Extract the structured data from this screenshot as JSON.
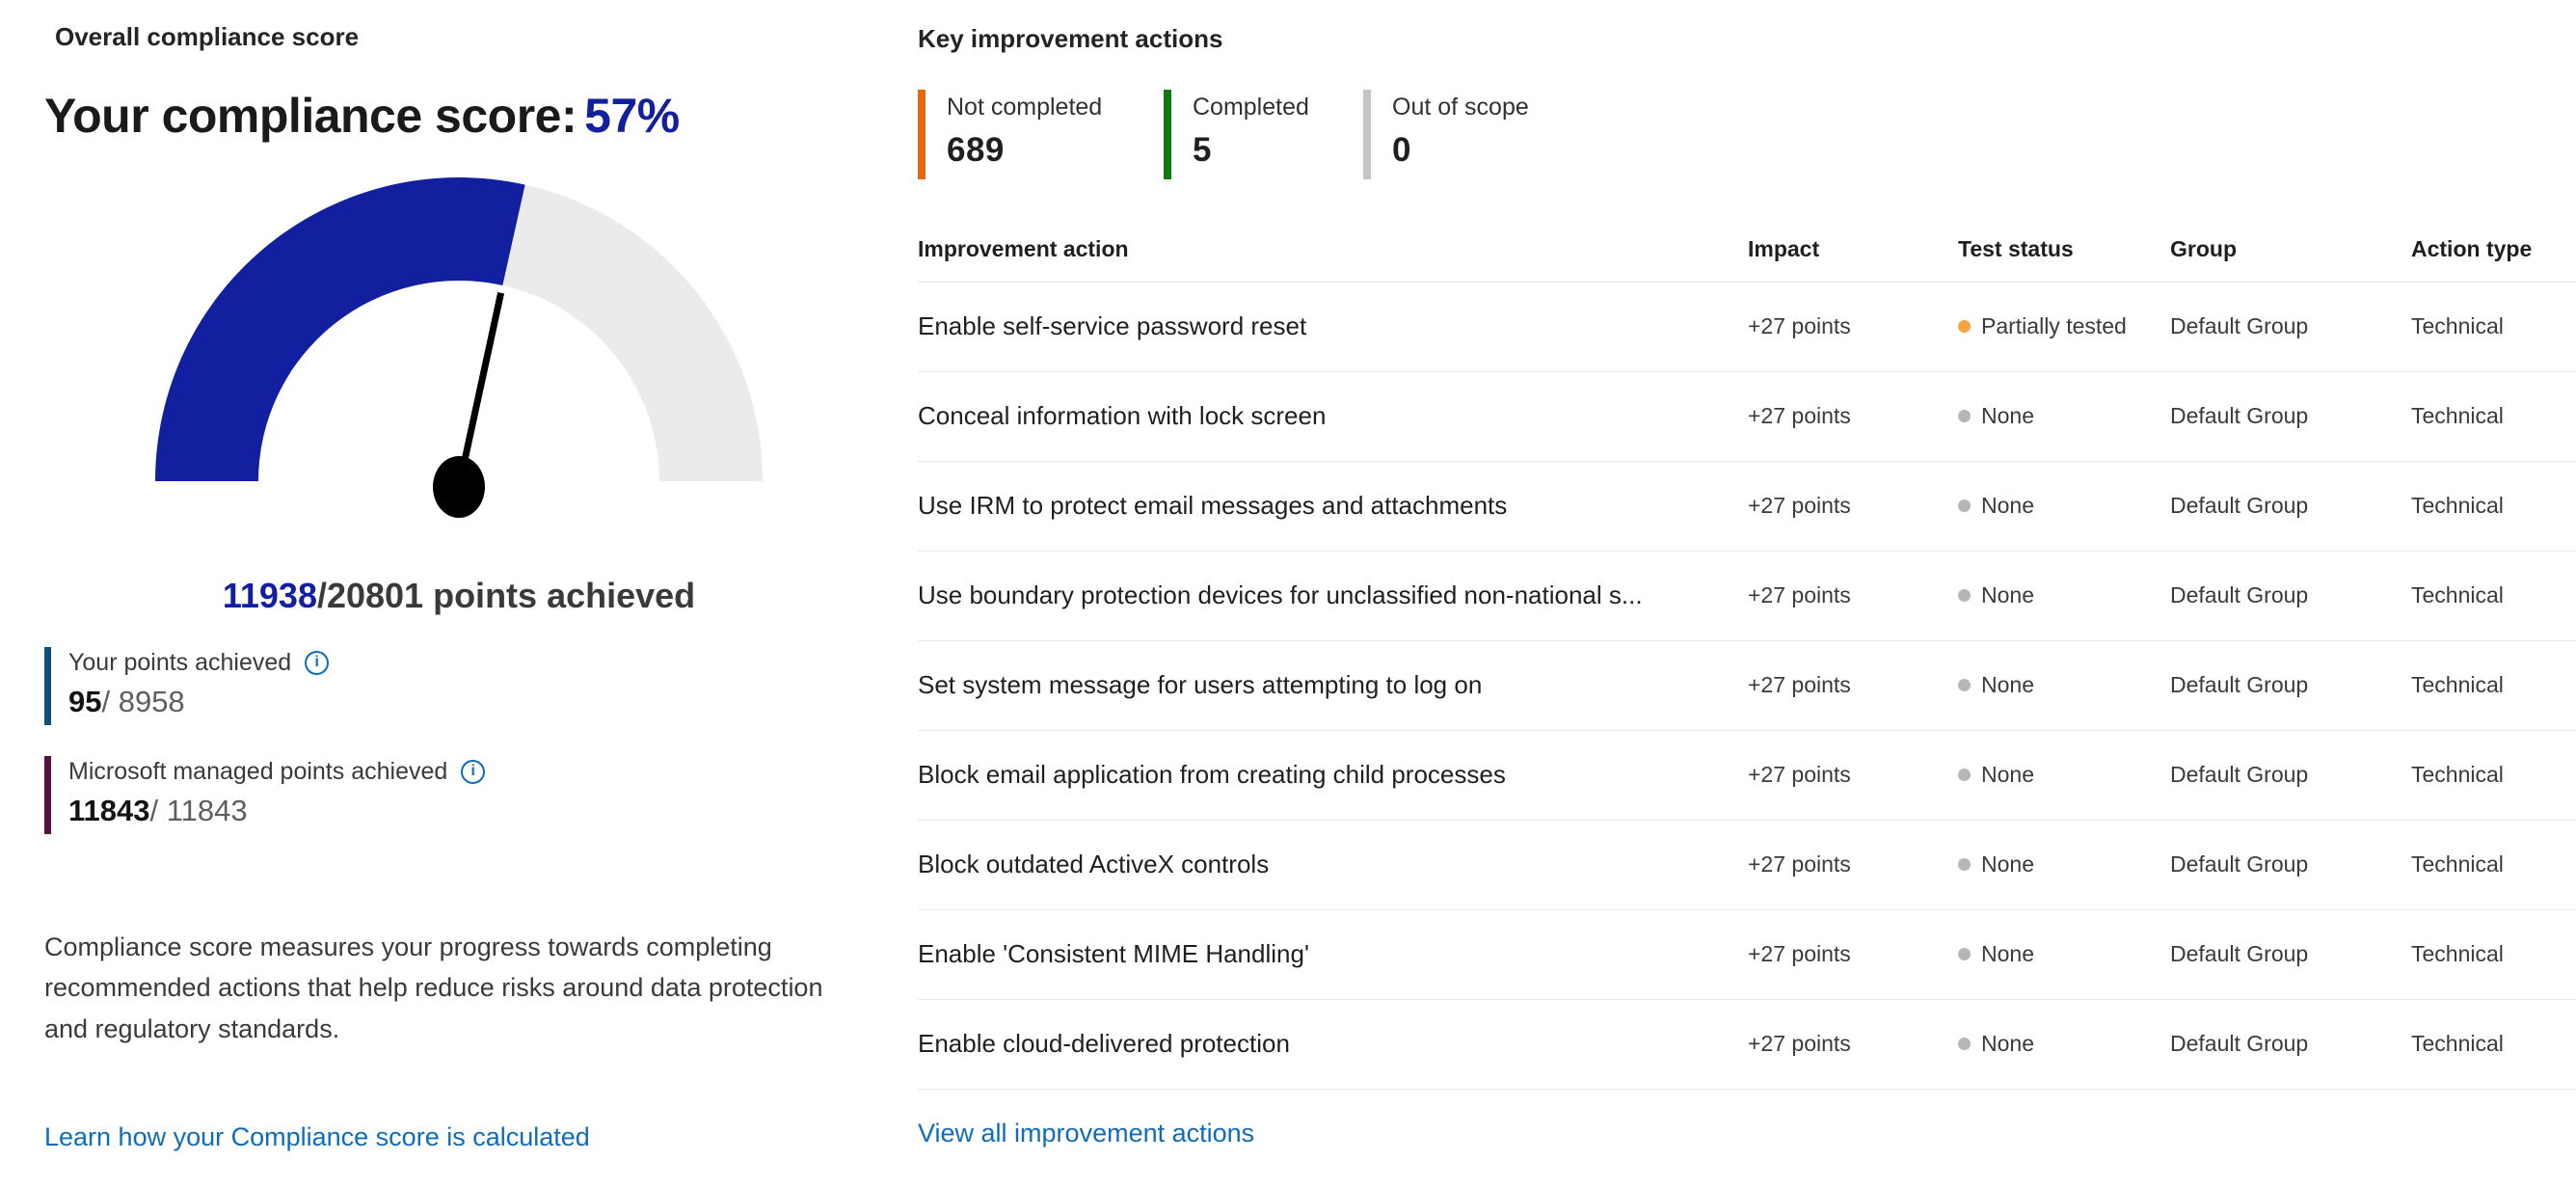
{
  "left_panel": {
    "section_title": "Overall compliance score",
    "score_heading_prefix": "Your compliance score:",
    "score_percent": "57%",
    "points_line": {
      "achieved": "11938",
      "rest": "/20801 points achieved"
    },
    "legend": [
      {
        "label": "Your points achieved",
        "value": "95",
        "total": "/ 8958",
        "bar_color": "#0f4f78"
      },
      {
        "label": "Microsoft managed points achieved",
        "value": "11843",
        "total": "/ 11843",
        "bar_color": "#53123f"
      }
    ],
    "info_icon_glyph": "i",
    "description": "Compliance score measures your progress towards completing recommended actions that help reduce risks around data protection and regulatory standards.",
    "learn_link": "Learn how your Compliance score is calculated"
  },
  "right_panel": {
    "section_title": "Key improvement actions",
    "stats": [
      {
        "label": "Not completed",
        "value": "689",
        "color": "#e8650c"
      },
      {
        "label": "Completed",
        "value": "5",
        "color": "#107c10"
      },
      {
        "label": "Out of scope",
        "value": "0",
        "color": "#c6c4c2"
      }
    ],
    "table": {
      "columns": [
        "Improvement action",
        "Impact",
        "Test status",
        "Group",
        "Action type"
      ],
      "rows": [
        {
          "action": "Enable self-service password reset",
          "impact": "+27 points",
          "status": "Partially tested",
          "status_color": "#f7a340",
          "group": "Default Group",
          "type": "Technical"
        },
        {
          "action": "Conceal information with lock screen",
          "impact": "+27 points",
          "status": "None",
          "status_color": "#b8b6b4",
          "group": "Default Group",
          "type": "Technical"
        },
        {
          "action": "Use IRM to protect email messages and attachments",
          "impact": "+27 points",
          "status": "None",
          "status_color": "#b8b6b4",
          "group": "Default Group",
          "type": "Technical"
        },
        {
          "action": "Use boundary protection devices for unclassified non-national s...",
          "impact": "+27 points",
          "status": "None",
          "status_color": "#b8b6b4",
          "group": "Default Group",
          "type": "Technical"
        },
        {
          "action": "Set system message for users attempting to log on",
          "impact": "+27 points",
          "status": "None",
          "status_color": "#b8b6b4",
          "group": "Default Group",
          "type": "Technical"
        },
        {
          "action": "Block email application from creating child processes",
          "impact": "+27 points",
          "status": "None",
          "status_color": "#b8b6b4",
          "group": "Default Group",
          "type": "Technical"
        },
        {
          "action": "Block outdated ActiveX controls",
          "impact": "+27 points",
          "status": "None",
          "status_color": "#b8b6b4",
          "group": "Default Group",
          "type": "Technical"
        },
        {
          "action": "Enable 'Consistent MIME Handling'",
          "impact": "+27 points",
          "status": "None",
          "status_color": "#b8b6b4",
          "group": "Default Group",
          "type": "Technical"
        },
        {
          "action": "Enable cloud-delivered protection",
          "impact": "+27 points",
          "status": "None",
          "status_color": "#b8b6b4",
          "group": "Default Group",
          "type": "Technical"
        }
      ]
    },
    "view_link": "View all improvement actions"
  },
  "chart_data": {
    "type": "gauge",
    "title": "Your compliance score",
    "percent": 57,
    "points_achieved": 11938,
    "points_total": 20801,
    "angle_span_deg": 180,
    "segments": [
      {
        "label": "achieved",
        "value": 57,
        "color": "#121f9e"
      },
      {
        "label": "remaining",
        "value": 43,
        "color": "#ebebeb"
      }
    ],
    "needle_color": "#000000"
  }
}
